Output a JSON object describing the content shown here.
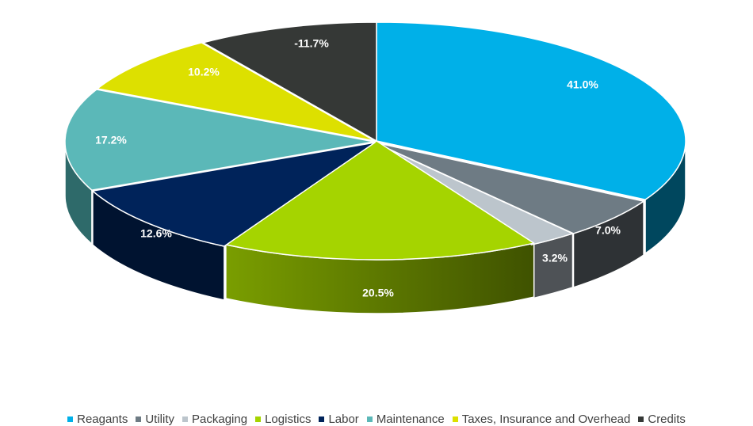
{
  "chart_data": {
    "type": "pie",
    "style": "3d-exploded-perspective",
    "legend_position": "bottom",
    "series": [
      {
        "name": "Reagants",
        "label": "41.0%",
        "value": 41.0,
        "color": "#00b0e8",
        "side_color": "#00475e"
      },
      {
        "name": "Utility",
        "label": "7.0%",
        "value": 7.0,
        "color": "#6e7b84",
        "side_color": "#2e3235"
      },
      {
        "name": "Packaging",
        "label": "3.2%",
        "value": 3.2,
        "color": "#bcc5cc",
        "side_color": "#4e5256"
      },
      {
        "name": "Logistics",
        "label": "20.5%",
        "value": 20.5,
        "color": "#a5d400",
        "side_color": "#5f7a00"
      },
      {
        "name": "Labor",
        "label": "12.6%",
        "value": 12.6,
        "color": "#00235a",
        "side_color": "#001330"
      },
      {
        "name": "Maintenance",
        "label": "17.2%",
        "value": 17.2,
        "color": "#5bb8b8",
        "side_color": "#2e6a6a"
      },
      {
        "name": "Taxes, Insurance and Overhead",
        "label": "10.2%",
        "value": 10.2,
        "color": "#dde000",
        "side_color": "#7d7e00"
      },
      {
        "name": "Credits",
        "label": "-11.7%",
        "value": -11.7,
        "color": "#353836",
        "side_color": "#1e201f"
      }
    ]
  }
}
